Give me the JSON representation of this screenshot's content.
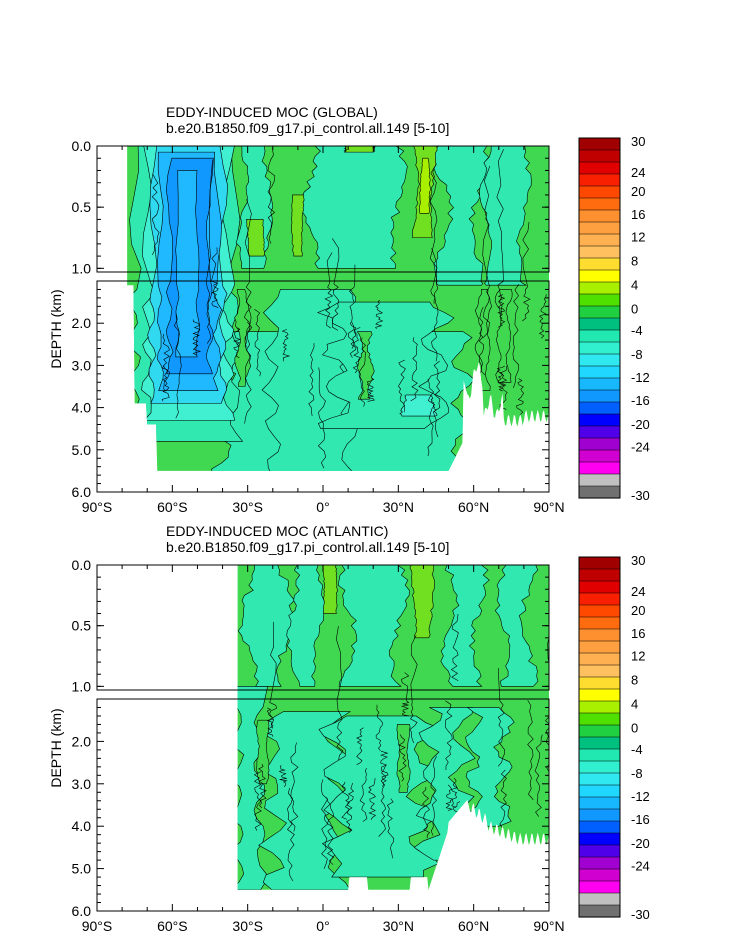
{
  "chart_data": [
    {
      "type": "contour",
      "title": "EDDY-INDUCED MOC (GLOBAL)",
      "subtitle": "b.e20.B1850.f09_g17.pi_control.all.149 [5-10]",
      "ylabel": "DEPTH (km)",
      "xlim": [
        -90,
        90
      ],
      "ylim": [
        6.0,
        0.0
      ],
      "x_ticks": [
        "90°S",
        "60°S",
        "30°S",
        "0°",
        "30°N",
        "60°N",
        "90°N"
      ],
      "y_ticks_upper": [
        "0.0",
        "0.5",
        "1.0"
      ],
      "y_ticks_lower": [
        "2.0",
        "3.0",
        "4.0",
        "5.0",
        "6.0"
      ],
      "domain_south_edge_deg": -78,
      "features": [
        {
          "name": "southern-ocean-minimum",
          "lat": -50,
          "depth_km": 1.5,
          "value": -14
        },
        {
          "name": "north-atlantic-maximum",
          "lat": 40,
          "depth_km": 0.2,
          "value": 5
        },
        {
          "name": "abyssal-cell",
          "lat": 45,
          "depth_km": 4.0,
          "value": -3
        }
      ]
    },
    {
      "type": "contour",
      "title": "EDDY-INDUCED MOC (ATLANTIC)",
      "subtitle": "b.e20.B1850.f09_g17.pi_control.all.149 [5-10]",
      "ylabel": "DEPTH (km)",
      "xlim": [
        -90,
        90
      ],
      "ylim": [
        6.0,
        0.0
      ],
      "x_ticks": [
        "90°S",
        "60°S",
        "30°S",
        "0°",
        "30°N",
        "60°N",
        "90°N"
      ],
      "y_ticks_upper": [
        "0.0",
        "0.5",
        "1.0"
      ],
      "y_ticks_lower": [
        "2.0",
        "3.0",
        "4.0",
        "5.0",
        "6.0"
      ],
      "domain_south_edge_deg": -34,
      "features": [
        {
          "name": "north-atlantic-maximum",
          "lat": 40,
          "depth_km": 0.3,
          "value": 3
        }
      ]
    }
  ],
  "colorbar": {
    "labels": [
      "30",
      "24",
      "20",
      "16",
      "12",
      "8",
      "4",
      "0",
      "-4",
      "-8",
      "-12",
      "-16",
      "-20",
      "-24",
      "-30"
    ],
    "colors": [
      "#a00000",
      "#c00000",
      "#e00000",
      "#f82000",
      "#ff4800",
      "#ff6c10",
      "#ff9030",
      "#ffa040",
      "#ffb050",
      "#ffc060",
      "#ffdc30",
      "#ffff00",
      "#a8f000",
      "#50e000",
      "#20d040",
      "#00c080",
      "#20e8b0",
      "#30f0d0",
      "#30e8f0",
      "#20d8ff",
      "#18b8ff",
      "#1098ff",
      "#0060ff",
      "#0000ff",
      "#5000e8",
      "#a000d0",
      "#d000d0",
      "#ff00f0",
      "#c0c0c0",
      "#707070"
    ]
  }
}
